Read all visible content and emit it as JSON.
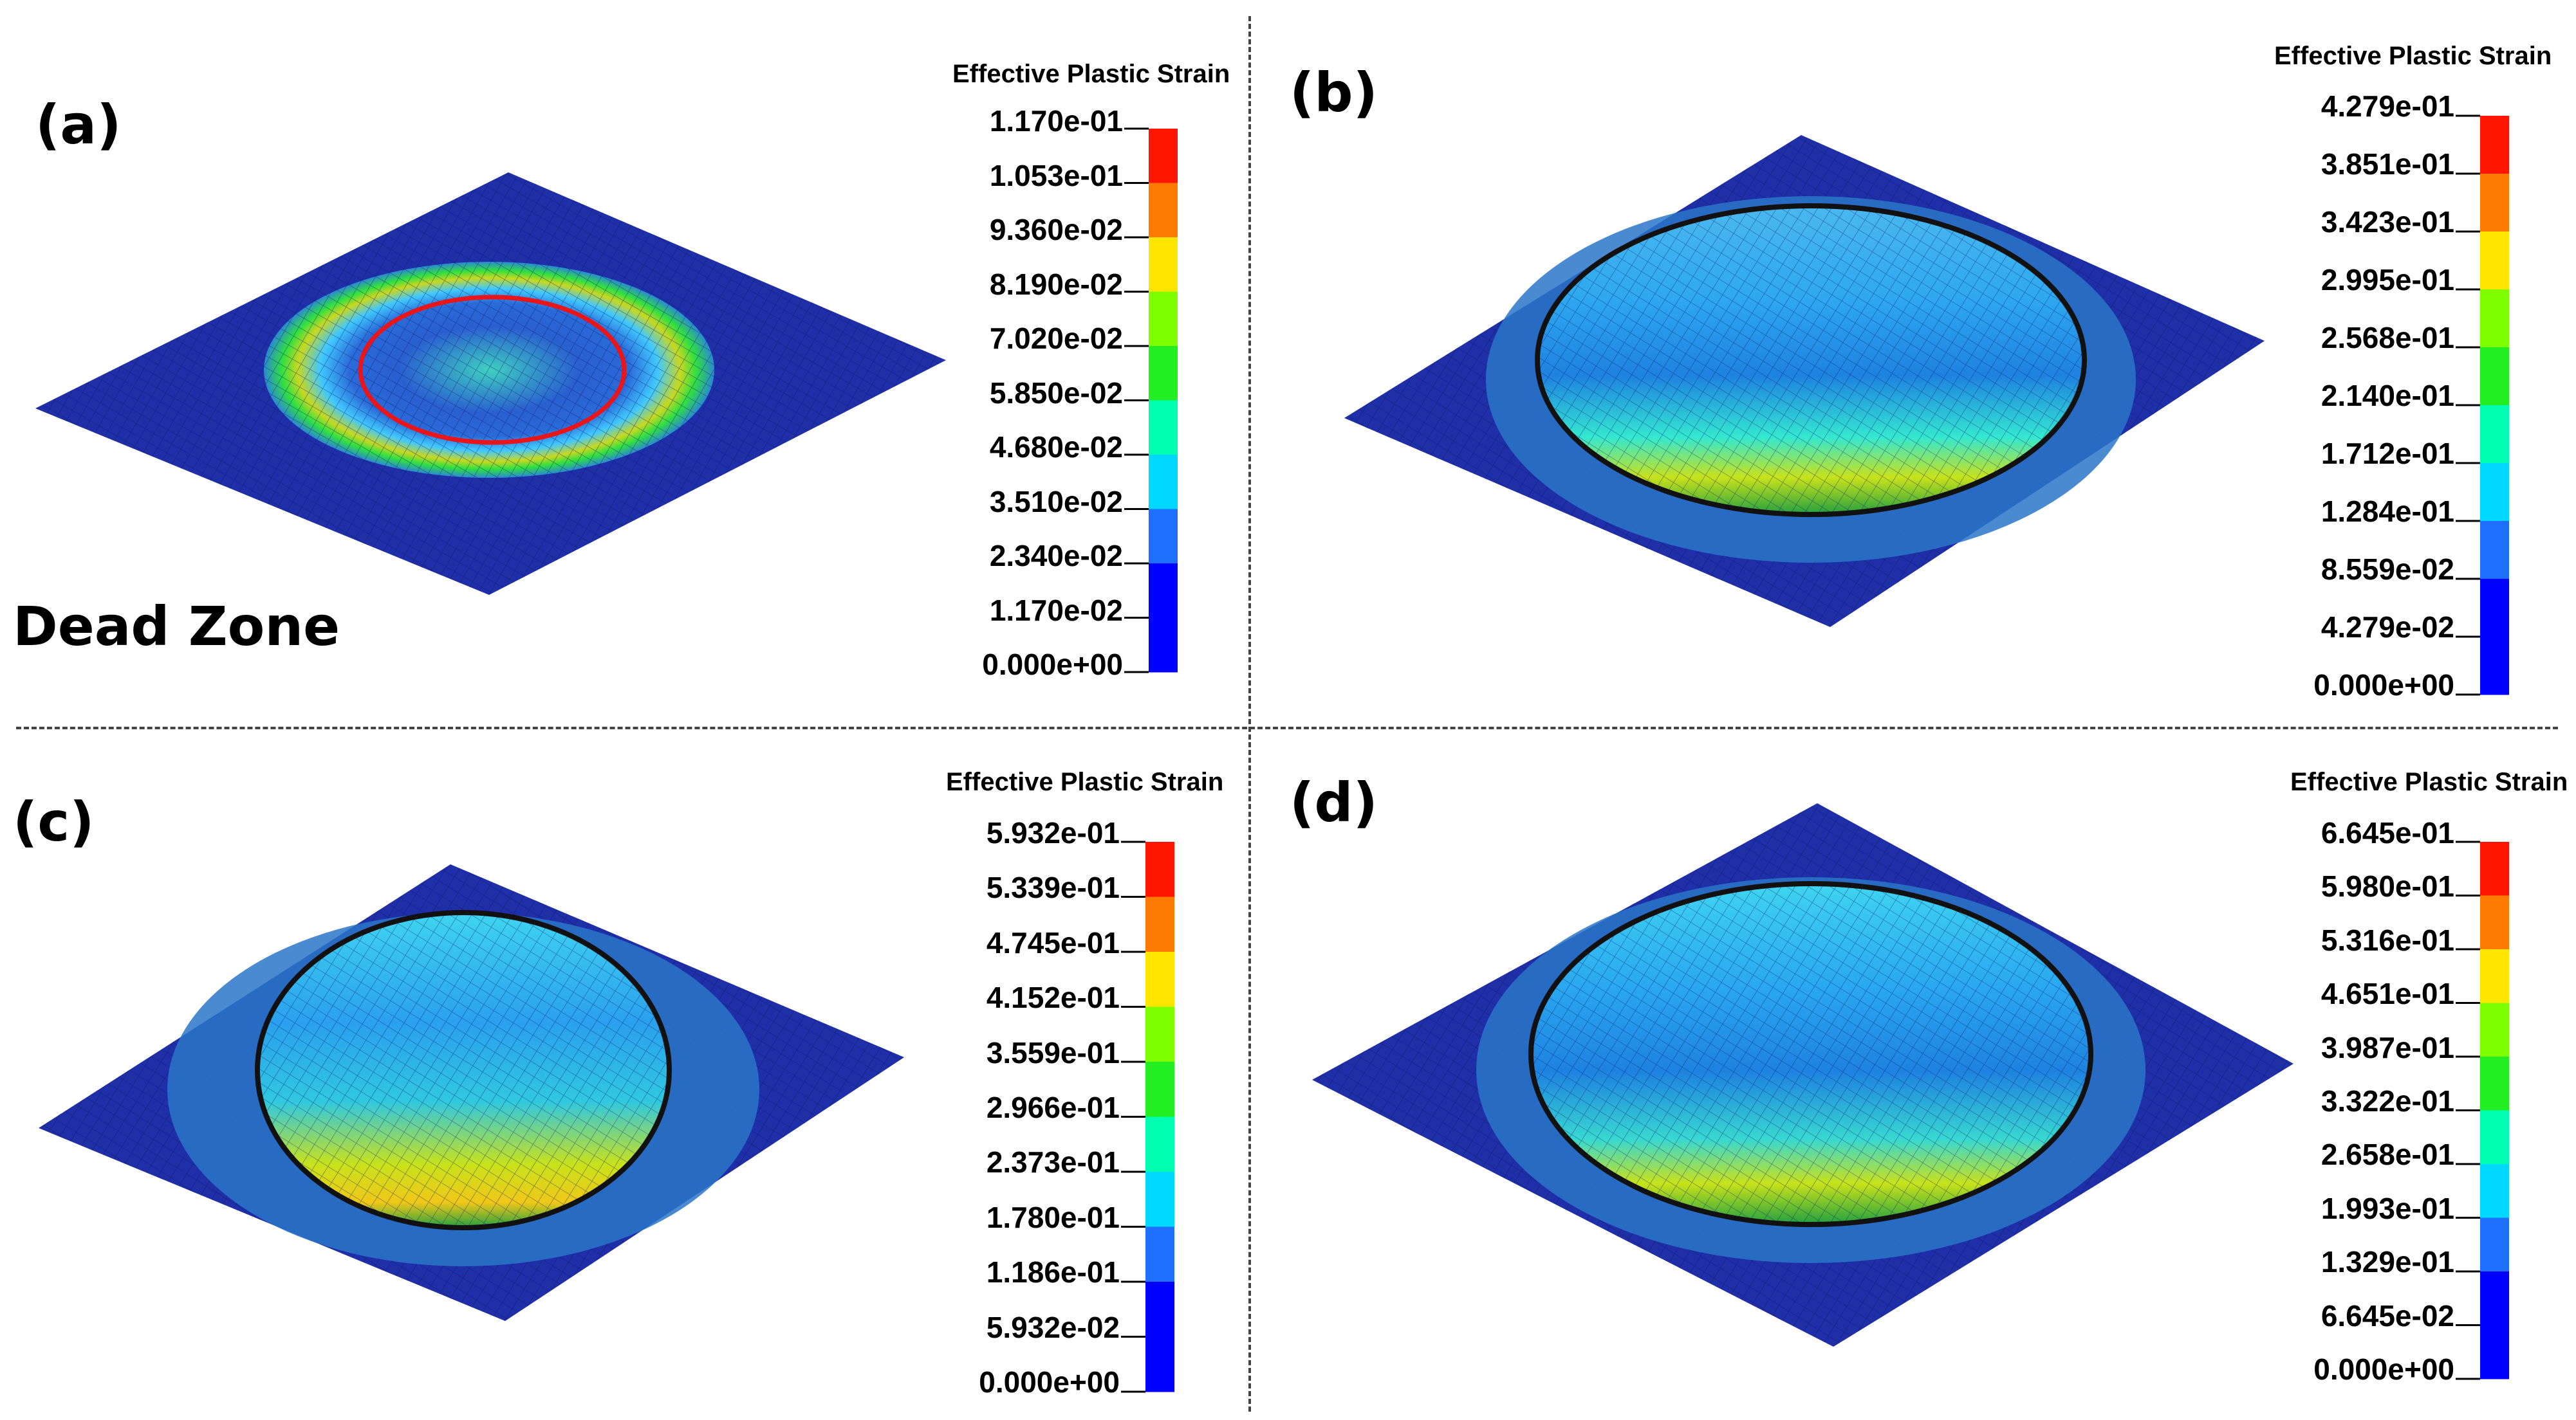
{
  "colors": {
    "sheet": "#1f2fa8",
    "scale": [
      "#0000ff",
      "#1f6fff",
      "#00d8ff",
      "#00ffb0",
      "#22ee22",
      "#7dff00",
      "#ffe600",
      "#ff7a00",
      "#ff1500"
    ]
  },
  "panels": [
    {
      "label": "(a)",
      "note": "Dead Zone",
      "legend_title": "Effective Plastic Strain",
      "ticks": [
        "1.170e-01",
        "1.053e-01",
        "9.360e-02",
        "8.190e-02",
        "7.020e-02",
        "5.850e-02",
        "4.680e-02",
        "3.510e-02",
        "2.340e-02",
        "1.170e-02",
        "0.000e+00"
      ]
    },
    {
      "label": "(b)",
      "note": "",
      "legend_title": "Effective Plastic Strain",
      "ticks": [
        "4.279e-01",
        "3.851e-01",
        "3.423e-01",
        "2.995e-01",
        "2.568e-01",
        "2.140e-01",
        "1.712e-01",
        "1.284e-01",
        "8.559e-02",
        "4.279e-02",
        "0.000e+00"
      ]
    },
    {
      "label": "(c)",
      "note": "",
      "legend_title": "Effective Plastic Strain",
      "ticks": [
        "5.932e-01",
        "5.339e-01",
        "4.745e-01",
        "4.152e-01",
        "3.559e-01",
        "2.966e-01",
        "2.373e-01",
        "1.780e-01",
        "1.186e-01",
        "5.932e-02",
        "0.000e+00"
      ]
    },
    {
      "label": "(d)",
      "note": "",
      "legend_title": "Effective Plastic Strain",
      "ticks": [
        "6.645e-01",
        "5.980e-01",
        "5.316e-01",
        "4.651e-01",
        "3.987e-01",
        "3.322e-01",
        "2.658e-01",
        "1.993e-01",
        "1.329e-01",
        "6.645e-02",
        "0.000e+00"
      ]
    }
  ]
}
